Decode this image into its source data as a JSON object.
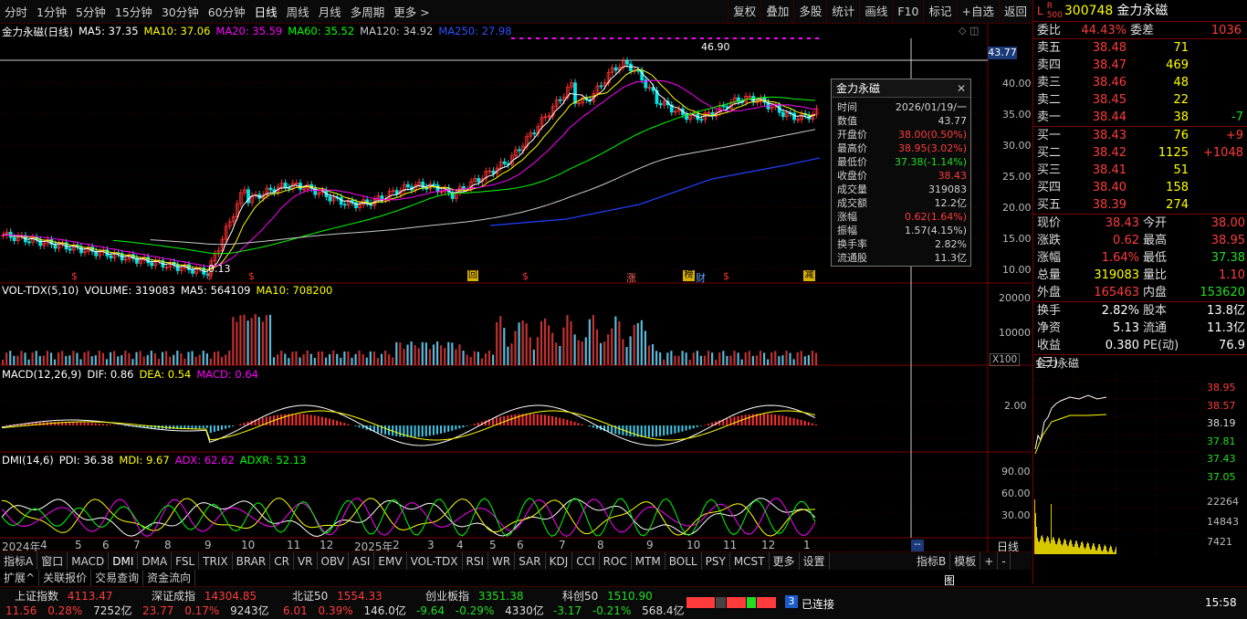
{
  "toolbar": {
    "periods": [
      "分时",
      "1分钟",
      "5分钟",
      "15分钟",
      "30分钟",
      "60分钟",
      "日线",
      "周线",
      "月线",
      "多周期",
      "更多 >"
    ],
    "active_period": "日线",
    "buttons": [
      "复权",
      "叠加",
      "多股",
      "统计",
      "画线",
      "F10",
      "标记",
      "+自选",
      "返回"
    ]
  },
  "main_chart": {
    "title": "金力永磁(日线)",
    "ma": [
      {
        "label": "MA5: 37.35",
        "color": "#ffffff"
      },
      {
        "label": "MA10: 37.06",
        "color": "#ffff00"
      },
      {
        "label": "MA20: 35.59",
        "color": "#ff00ff"
      },
      {
        "label": "MA60: 35.52",
        "color": "#00ff00"
      },
      {
        "label": "MA120: 34.92",
        "color": "#cccccc"
      },
      {
        "label": "MA250: 27.98",
        "color": "#3050ff"
      }
    ],
    "y_ticks": [
      "40.00",
      "35.00",
      "30.00",
      "25.00",
      "20.00",
      "15.00",
      "10.00"
    ],
    "cursor_price": "43.77",
    "high_label": "46.90",
    "low_label": "0.13",
    "markers": [
      "回",
      "涨",
      "榜",
      "财",
      "减"
    ]
  },
  "tooltip": {
    "title": "金力永磁",
    "rows": [
      {
        "k": "时间",
        "v": "2026/01/19/一",
        "c": "#d0d0d0"
      },
      {
        "k": "数值",
        "v": "43.77",
        "c": "#d0d0d0"
      },
      {
        "k": "开盘价",
        "v": "38.00(0.50%)",
        "c": "#ff3b3b"
      },
      {
        "k": "最高价",
        "v": "38.95(3.02%)",
        "c": "#ff3b3b"
      },
      {
        "k": "最低价",
        "v": "37.38(-1.14%)",
        "c": "#22dd22"
      },
      {
        "k": "收盘价",
        "v": "38.43",
        "c": "#ff3b3b"
      },
      {
        "k": "成交量",
        "v": "319083",
        "c": "#d0d0d0"
      },
      {
        "k": "成交额",
        "v": "12.2亿",
        "c": "#d0d0d0"
      },
      {
        "k": "涨幅",
        "v": "0.62(1.64%)",
        "c": "#ff3b3b"
      },
      {
        "k": "振幅",
        "v": "1.57(4.15%)",
        "c": "#d0d0d0"
      },
      {
        "k": "换手率",
        "v": "2.82%",
        "c": "#d0d0d0"
      },
      {
        "k": "流通股",
        "v": "11.3亿",
        "c": "#d0d0d0"
      }
    ]
  },
  "vol_panel": {
    "legend": [
      "VOL-TDX(5,10)",
      "VOLUME: 319083",
      "MA5: 564109",
      "MA10: 708200"
    ],
    "y_ticks": [
      "20000",
      "10000"
    ],
    "unit": "X100"
  },
  "macd_panel": {
    "legend": [
      "MACD(12,26,9)",
      "DIF: 0.86",
      "DEA: 0.54",
      "MACD: 0.64"
    ],
    "y_ticks": [
      "2.00"
    ]
  },
  "dmi_panel": {
    "legend": [
      "DMI(14,6)",
      "PDI: 36.38",
      "MDI: 9.67",
      "ADX: 62.62",
      "ADXR: 52.13"
    ],
    "y_ticks": [
      "90.00",
      "60.00",
      "30.00"
    ],
    "x_labels": [
      "2024年",
      "4",
      "5",
      "6",
      "7",
      "8",
      "9",
      "10",
      "11",
      "12",
      "2025年",
      "2",
      "3",
      "4",
      "5",
      "6",
      "7",
      "8",
      "9",
      "10",
      "11",
      "12",
      "1"
    ],
    "period_label": "日线"
  },
  "indicator_tabs": [
    "指标A",
    "窗口",
    "MACD",
    "DMI",
    "DMA",
    "FSL",
    "TRIX",
    "BRAR",
    "CR",
    "VR",
    "OBV",
    "ASI",
    "EMV",
    "VOL-TDX",
    "RSI",
    "WR",
    "SAR",
    "KDJ",
    "CCI",
    "ROC",
    "MTM",
    "BOLL",
    "PSY",
    "MCST",
    "更多",
    "设置"
  ],
  "indicator_tab_b": "指标B",
  "indicator_tab_b2": "模板",
  "sub_tabs": [
    "扩展^",
    "关联报价",
    "交易查询",
    "资金流向"
  ],
  "quote": {
    "code": "300748",
    "name": "金力永磁",
    "webi_label": "委比",
    "webi": "44.43%",
    "weicha_label": "委差",
    "weicha": "1036",
    "asks": [
      {
        "label": "卖五",
        "price": "38.48",
        "vol": "71",
        "chg": ""
      },
      {
        "label": "卖四",
        "price": "38.47",
        "vol": "469",
        "chg": ""
      },
      {
        "label": "卖三",
        "price": "38.46",
        "vol": "48",
        "chg": ""
      },
      {
        "label": "卖二",
        "price": "38.45",
        "vol": "22",
        "chg": ""
      },
      {
        "label": "卖一",
        "price": "38.44",
        "vol": "38",
        "chg": "-7"
      }
    ],
    "bids": [
      {
        "label": "买一",
        "price": "38.43",
        "vol": "76",
        "chg": "+9"
      },
      {
        "label": "买二",
        "price": "38.42",
        "vol": "1125",
        "chg": "+1048"
      },
      {
        "label": "买三",
        "price": "38.41",
        "vol": "51",
        "chg": ""
      },
      {
        "label": "买四",
        "price": "38.40",
        "vol": "158",
        "chg": ""
      },
      {
        "label": "买五",
        "price": "38.39",
        "vol": "274",
        "chg": ""
      }
    ],
    "stats": [
      [
        {
          "k": "现价",
          "v": "38.43",
          "c": "#ff3b3b"
        },
        {
          "k": "今开",
          "v": "38.00",
          "c": "#ff3b3b"
        }
      ],
      [
        {
          "k": "涨跌",
          "v": "0.62",
          "c": "#ff3b3b"
        },
        {
          "k": "最高",
          "v": "38.95",
          "c": "#ff3b3b"
        }
      ],
      [
        {
          "k": "涨幅",
          "v": "1.64%",
          "c": "#ff3b3b"
        },
        {
          "k": "最低",
          "v": "37.38",
          "c": "#22dd22"
        }
      ],
      [
        {
          "k": "总量",
          "v": "319083",
          "c": "#ffff00"
        },
        {
          "k": "量比",
          "v": "1.10",
          "c": "#ff3b3b"
        }
      ],
      [
        {
          "k": "外盘",
          "v": "165463",
          "c": "#ff3b3b"
        },
        {
          "k": "内盘",
          "v": "153620",
          "c": "#22dd22"
        }
      ]
    ],
    "stats2": [
      [
        {
          "k": "换手",
          "v": "2.82%"
        },
        {
          "k": "股本",
          "v": "13.8亿"
        }
      ],
      [
        {
          "k": "净资",
          "v": "5.13"
        },
        {
          "k": "流通",
          "v": "11.3亿"
        }
      ],
      [
        {
          "k": "收益(三)",
          "v": "0.380"
        },
        {
          "k": "PE(动)",
          "v": "76.9"
        }
      ]
    ],
    "mini_title": "金力永磁",
    "mini_y": [
      "38.95",
      "38.57",
      "38.19",
      "37.81",
      "37.43",
      "37.05"
    ],
    "mini_vol": [
      "22264",
      "14843",
      "7421"
    ]
  },
  "status": {
    "indices": [
      {
        "name": "上证指数",
        "val": "4113.47",
        "chg": "11.56",
        "pct": "0.28%",
        "amt": "7252亿",
        "up": true
      },
      {
        "name": "深证成指",
        "val": "14304.85",
        "chg": "23.77",
        "pct": "0.17%",
        "amt": "9243亿",
        "up": true
      },
      {
        "name": "北证50",
        "val": "1554.33",
        "chg": "6.01",
        "pct": "0.39%",
        "amt": "146.0亿",
        "up": true
      },
      {
        "name": "创业板指",
        "val": "3351.38",
        "chg": "-9.64",
        "pct": "-0.29%",
        "amt": "4330亿",
        "up": false
      },
      {
        "name": "科创50",
        "val": "1510.90",
        "chg": "-3.17",
        "pct": "-0.21%",
        "amt": "568.4亿",
        "up": false
      }
    ],
    "conn_num": "3",
    "conn_text": "已连接",
    "time": "15:58",
    "pic_label": "图"
  }
}
